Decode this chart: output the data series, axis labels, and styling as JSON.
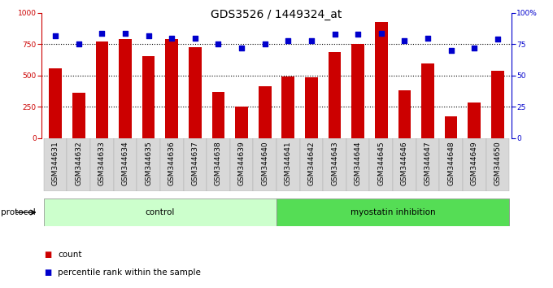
{
  "title": "GDS3526 / 1449324_at",
  "categories": [
    "GSM344631",
    "GSM344632",
    "GSM344633",
    "GSM344634",
    "GSM344635",
    "GSM344636",
    "GSM344637",
    "GSM344638",
    "GSM344639",
    "GSM344640",
    "GSM344641",
    "GSM344642",
    "GSM344643",
    "GSM344644",
    "GSM344645",
    "GSM344646",
    "GSM344647",
    "GSM344648",
    "GSM344649",
    "GSM344650"
  ],
  "bar_values": [
    555,
    360,
    775,
    790,
    655,
    790,
    730,
    370,
    250,
    415,
    490,
    485,
    690,
    755,
    930,
    385,
    600,
    175,
    285,
    540
  ],
  "dot_values": [
    82,
    75,
    84,
    84,
    82,
    80,
    80,
    75,
    72,
    75,
    78,
    78,
    83,
    83,
    84,
    78,
    80,
    70,
    72,
    79
  ],
  "bar_color": "#cc0000",
  "dot_color": "#0000cc",
  "control_count": 10,
  "myostatin_count": 10,
  "control_color": "#ccffcc",
  "myostatin_color": "#55dd55",
  "control_label": "control",
  "myostatin_label": "myostatin inhibition",
  "protocol_label": "protocol",
  "legend_bar": "count",
  "legend_dot": "percentile rank within the sample",
  "ylim_left": [
    0,
    1000
  ],
  "ylim_right": [
    0,
    100
  ],
  "yticks_left": [
    0,
    250,
    500,
    750,
    1000
  ],
  "yticks_right": [
    0,
    25,
    50,
    75,
    100
  ],
  "ytick_labels_right": [
    "0",
    "25",
    "50",
    "75",
    "100%"
  ],
  "grid_values": [
    250,
    500,
    750
  ],
  "title_fontsize": 10,
  "tick_fontsize": 6.5,
  "label_fontsize": 7.5,
  "bar_width": 0.55,
  "figsize": [
    6.8,
    3.54
  ],
  "dpi": 100
}
